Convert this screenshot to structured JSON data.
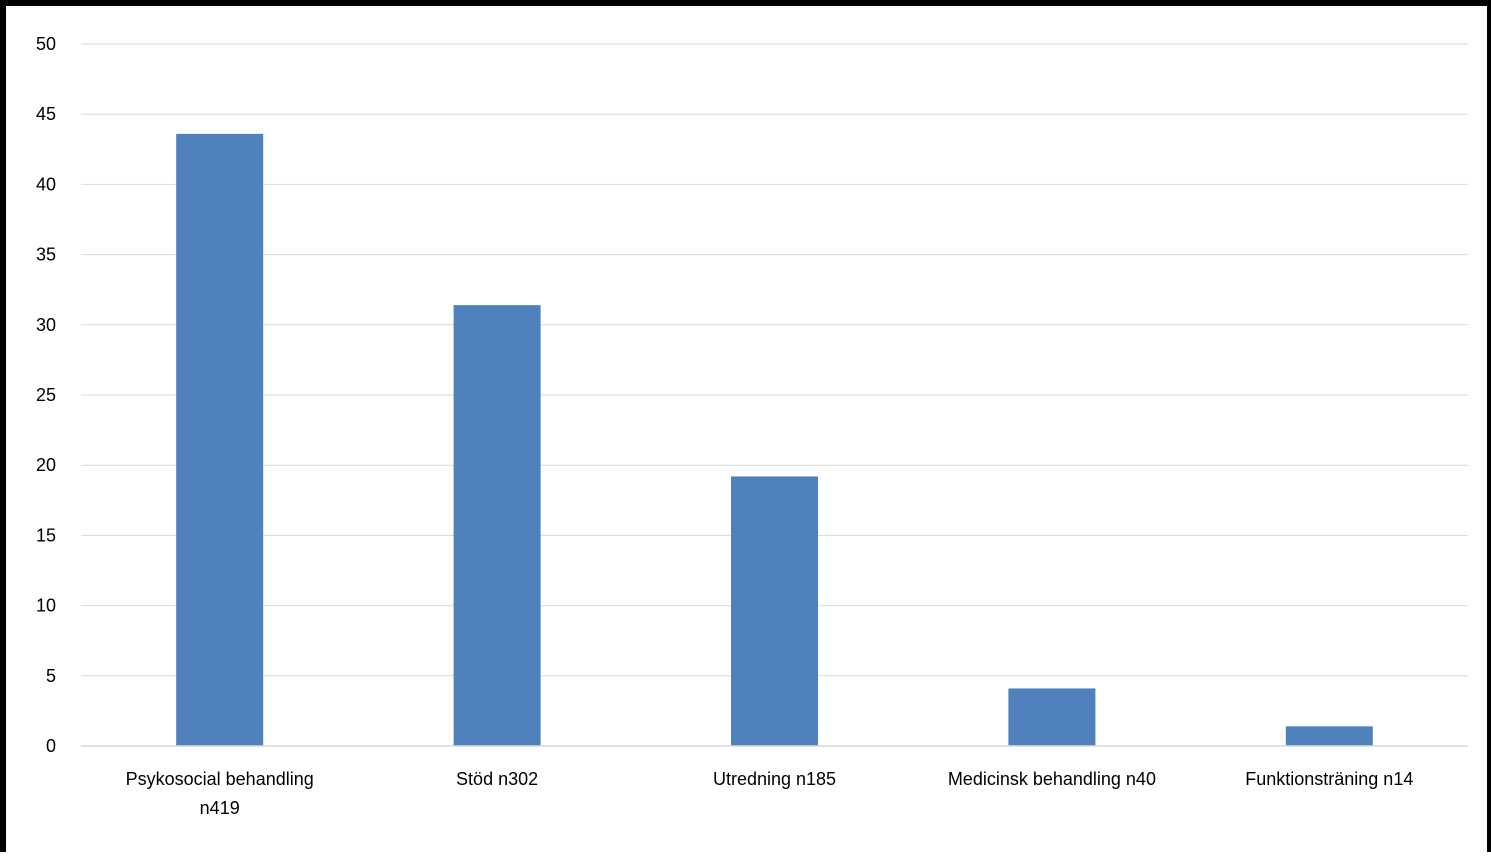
{
  "chart_data": {
    "type": "bar",
    "categories": [
      [
        "Psykosocial behandling",
        "n419"
      ],
      [
        "Stöd n302"
      ],
      [
        "Utredning n185"
      ],
      [
        "Medicinsk behandling n40"
      ],
      [
        "Funktionsträning n14"
      ]
    ],
    "values": [
      43.6,
      31.4,
      19.2,
      4.1,
      1.4
    ],
    "ylim": [
      0,
      50
    ],
    "yticks": [
      0,
      5,
      10,
      15,
      20,
      25,
      30,
      35,
      40,
      45,
      50
    ],
    "grid": true,
    "legend": "none",
    "title": "",
    "xlabel": "",
    "ylabel": "",
    "bar_color": "#4F81BD",
    "grid_color": "#D9D9D9"
  }
}
